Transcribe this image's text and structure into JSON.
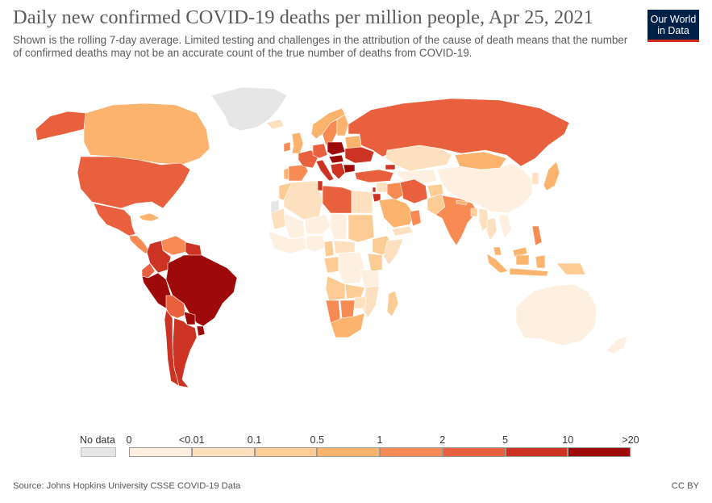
{
  "header": {
    "title": "Daily new confirmed COVID-19 deaths per million people, Apr 25, 2021",
    "subtitle": "Shown is the rolling 7-day average. Limited testing and challenges in the attribution of the cause of death means that the number of confirmed deaths may not be an accurate count of the true number of deaths from COVID-19."
  },
  "logo": {
    "line1": "Our World",
    "line2": "in Data",
    "bg": "#002147",
    "accent": "#d42b21"
  },
  "legend": {
    "no_data_label": "No data",
    "no_data_color": "#e6e6e6",
    "ticks": [
      "0",
      "<0.01",
      "0.1",
      "0.5",
      "1",
      "2",
      "5",
      "10",
      ">20"
    ],
    "colors": [
      "#fef0e1",
      "#fde0c0",
      "#fdcb94",
      "#fcb36e",
      "#f88a54",
      "#e8603d",
      "#cc3322",
      "#9e0a0a"
    ]
  },
  "footer": {
    "source": "Source: Johns Hopkins University CSSE COVID-19 Data",
    "license": "CC BY"
  },
  "map_regions": [
    {
      "name": "Greenland",
      "color": "#e6e6e6"
    },
    {
      "name": "Canada",
      "color": "#fcb36e"
    },
    {
      "name": "Alaska",
      "color": "#e8603d"
    },
    {
      "name": "United States",
      "color": "#e8603d"
    },
    {
      "name": "Mexico",
      "color": "#e8603d"
    },
    {
      "name": "Central America",
      "color": "#f88a54"
    },
    {
      "name": "Cuba",
      "color": "#fcb36e"
    },
    {
      "name": "Venezuela",
      "color": "#f88a54"
    },
    {
      "name": "Colombia",
      "color": "#cc3322"
    },
    {
      "name": "Guyana",
      "color": "#cc3322"
    },
    {
      "name": "Ecuador",
      "color": "#e8603d"
    },
    {
      "name": "Peru",
      "color": "#9e0a0a"
    },
    {
      "name": "Brazil",
      "color": "#9e0a0a"
    },
    {
      "name": "Bolivia",
      "color": "#e8603d"
    },
    {
      "name": "Paraguay",
      "color": "#9e0a0a"
    },
    {
      "name": "Chile",
      "color": "#cc3322"
    },
    {
      "name": "Argentina",
      "color": "#cc3322"
    },
    {
      "name": "Uruguay",
      "color": "#9e0a0a"
    },
    {
      "name": "Iceland",
      "color": "#fde0c0"
    },
    {
      "name": "Ireland",
      "color": "#f88a54"
    },
    {
      "name": "United Kingdom",
      "color": "#fcb36e"
    },
    {
      "name": "Norway",
      "color": "#fcb36e"
    },
    {
      "name": "Sweden",
      "color": "#f88a54"
    },
    {
      "name": "Finland",
      "color": "#fcb36e"
    },
    {
      "name": "Spain",
      "color": "#f88a54"
    },
    {
      "name": "Portugal",
      "color": "#fcb36e"
    },
    {
      "name": "France",
      "color": "#e8603d"
    },
    {
      "name": "Germany",
      "color": "#e8603d"
    },
    {
      "name": "Poland",
      "color": "#9e0a0a"
    },
    {
      "name": "Italy",
      "color": "#cc3322"
    },
    {
      "name": "Hungary",
      "color": "#9e0a0a"
    },
    {
      "name": "Balkans",
      "color": "#cc3322"
    },
    {
      "name": "Bulgaria",
      "color": "#9e0a0a"
    },
    {
      "name": "Ukraine",
      "color": "#cc3322"
    },
    {
      "name": "Belarus",
      "color": "#fcb36e"
    },
    {
      "name": "Russia",
      "color": "#e8603d"
    },
    {
      "name": "Turkey",
      "color": "#e8603d"
    },
    {
      "name": "Georgia",
      "color": "#cc3322"
    },
    {
      "name": "Kazakhstan",
      "color": "#fde0c0"
    },
    {
      "name": "Central Asia",
      "color": "#fef0e1"
    },
    {
      "name": "Mongolia",
      "color": "#fcb36e"
    },
    {
      "name": "China",
      "color": "#fef0e1"
    },
    {
      "name": "Korea",
      "color": "#fde0c0"
    },
    {
      "name": "Japan",
      "color": "#fcb36e"
    },
    {
      "name": "Iran",
      "color": "#e8603d"
    },
    {
      "name": "Iraq",
      "color": "#f88a54"
    },
    {
      "name": "Syria",
      "color": "#fde0c0"
    },
    {
      "name": "Lebanon",
      "color": "#cc3322"
    },
    {
      "name": "Jordan",
      "color": "#cc3322"
    },
    {
      "name": "Saudi Arabia",
      "color": "#fcb36e"
    },
    {
      "name": "Yemen",
      "color": "#fde0c0"
    },
    {
      "name": "Oman",
      "color": "#f88a54"
    },
    {
      "name": "Afghanistan",
      "color": "#fdcb94"
    },
    {
      "name": "Pakistan",
      "color": "#fdcb94"
    },
    {
      "name": "India",
      "color": "#f88a54"
    },
    {
      "name": "Nepal",
      "color": "#fcb36e"
    },
    {
      "name": "Bangladesh",
      "color": "#fdcb94"
    },
    {
      "name": "Myanmar",
      "color": "#fde0c0"
    },
    {
      "name": "Thailand",
      "color": "#fde0c0"
    },
    {
      "name": "Vietnam",
      "color": "#fef0e1"
    },
    {
      "name": "Philippines",
      "color": "#f88a54"
    },
    {
      "name": "Malaysia",
      "color": "#fcb36e"
    },
    {
      "name": "Indonesia",
      "color": "#fcb36e"
    },
    {
      "name": "Papua New Guinea",
      "color": "#fdcb94"
    },
    {
      "name": "Australia",
      "color": "#fef0e1"
    },
    {
      "name": "New Zealand",
      "color": "#fef0e1"
    },
    {
      "name": "Morocco",
      "color": "#fdcb94"
    },
    {
      "name": "Western Sahara",
      "color": "#e6e6e6"
    },
    {
      "name": "Algeria",
      "color": "#fde0c0"
    },
    {
      "name": "Tunisia",
      "color": "#cc3322"
    },
    {
      "name": "Libya",
      "color": "#e8603d"
    },
    {
      "name": "Egypt",
      "color": "#fde0c0"
    },
    {
      "name": "Mauritania",
      "color": "#fde0c0"
    },
    {
      "name": "Mali",
      "color": "#fef0e1"
    },
    {
      "name": "Niger",
      "color": "#fef0e1"
    },
    {
      "name": "Chad",
      "color": "#fef0e1"
    },
    {
      "name": "Sudan",
      "color": "#fdcb94"
    },
    {
      "name": "Ethiopia",
      "color": "#fdcb94"
    },
    {
      "name": "Somalia",
      "color": "#fde0c0"
    },
    {
      "name": "West Africa",
      "color": "#fef0e1"
    },
    {
      "name": "Nigeria",
      "color": "#fef0e1"
    },
    {
      "name": "Cameroon",
      "color": "#fdcb94"
    },
    {
      "name": "Central African Republic",
      "color": "#fde0c0"
    },
    {
      "name": "Gabon/Congo",
      "color": "#fdcb94"
    },
    {
      "name": "DR Congo",
      "color": "#fef0e1"
    },
    {
      "name": "Kenya",
      "color": "#fdcb94"
    },
    {
      "name": "Tanzania",
      "color": "#fef0e1"
    },
    {
      "name": "Angola",
      "color": "#fdcb94"
    },
    {
      "name": "Zambia",
      "color": "#fdcb94"
    },
    {
      "name": "Mozambique",
      "color": "#fde0c0"
    },
    {
      "name": "Namibia",
      "color": "#f88a54"
    },
    {
      "name": "Botswana",
      "color": "#f88a54"
    },
    {
      "name": "Zimbabwe",
      "color": "#fde0c0"
    },
    {
      "name": "South Africa",
      "color": "#fcb36e"
    },
    {
      "name": "Madagascar",
      "color": "#fdcb94"
    }
  ]
}
